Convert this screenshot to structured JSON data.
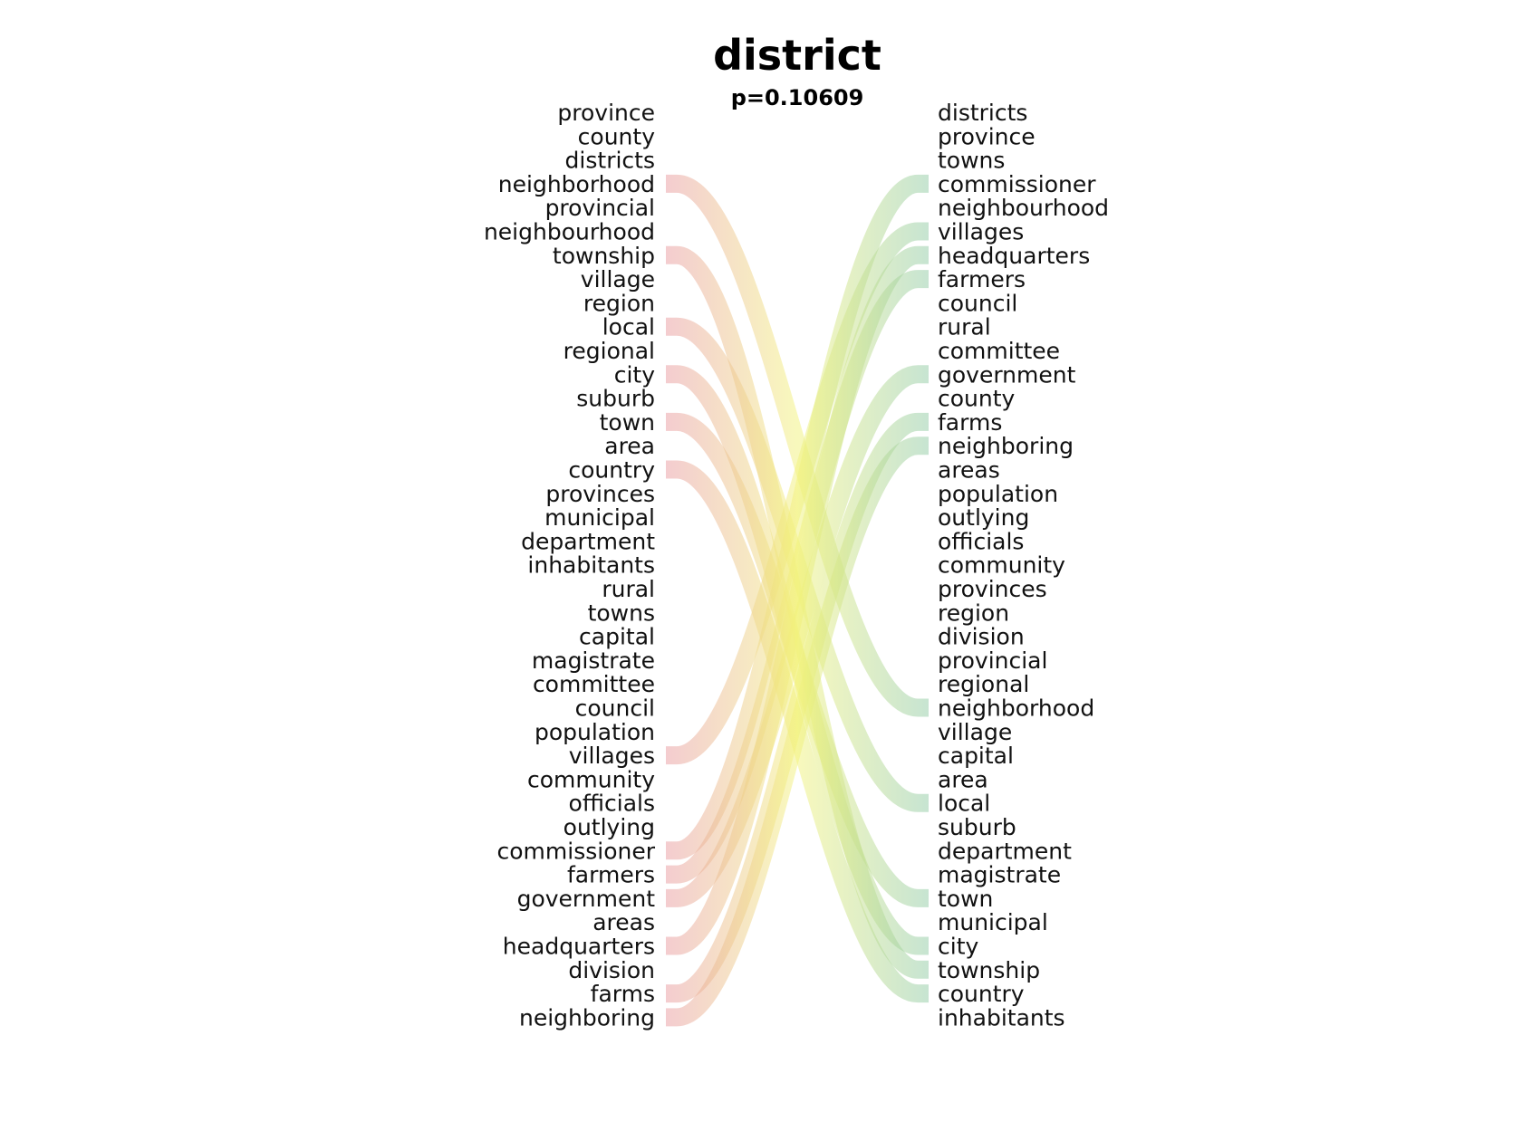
{
  "title": "district",
  "subtitle": "p=0.10609",
  "colors": {
    "left_start": "#e89aa0",
    "mid": "#f2f27a",
    "right_end": "#8fcaa4"
  },
  "left_words": [
    "province",
    "county",
    "districts",
    "neighborhood",
    "provincial",
    "neighbourhood",
    "township",
    "village",
    "region",
    "local",
    "regional",
    "city",
    "suburb",
    "town",
    "area",
    "country",
    "provinces",
    "municipal",
    "department",
    "inhabitants",
    "rural",
    "towns",
    "capital",
    "magistrate",
    "committee",
    "council",
    "population",
    "villages",
    "community",
    "officials",
    "outlying",
    "commissioner",
    "farmers",
    "government",
    "areas",
    "headquarters",
    "division",
    "farms",
    "neighboring"
  ],
  "right_words": [
    "districts",
    "province",
    "towns",
    "commissioner",
    "neighbourhood",
    "villages",
    "headquarters",
    "farmers",
    "council",
    "rural",
    "committee",
    "government",
    "county",
    "farms",
    "neighboring",
    "areas",
    "population",
    "outlying",
    "officials",
    "community",
    "provinces",
    "region",
    "division",
    "provincial",
    "regional",
    "neighborhood",
    "village",
    "capital",
    "area",
    "local",
    "suburb",
    "department",
    "magistrate",
    "town",
    "municipal",
    "city",
    "township",
    "country",
    "inhabitants"
  ],
  "links": [
    {
      "from": "neighborhood",
      "to": "neighborhood"
    },
    {
      "from": "township",
      "to": "township"
    },
    {
      "from": "local",
      "to": "local"
    },
    {
      "from": "city",
      "to": "city"
    },
    {
      "from": "town",
      "to": "town"
    },
    {
      "from": "country",
      "to": "country"
    },
    {
      "from": "villages",
      "to": "villages"
    },
    {
      "from": "commissioner",
      "to": "commissioner"
    },
    {
      "from": "farmers",
      "to": "farmers"
    },
    {
      "from": "government",
      "to": "government"
    },
    {
      "from": "headquarters",
      "to": "headquarters"
    },
    {
      "from": "farms",
      "to": "farms"
    },
    {
      "from": "neighboring",
      "to": "neighboring"
    }
  ]
}
